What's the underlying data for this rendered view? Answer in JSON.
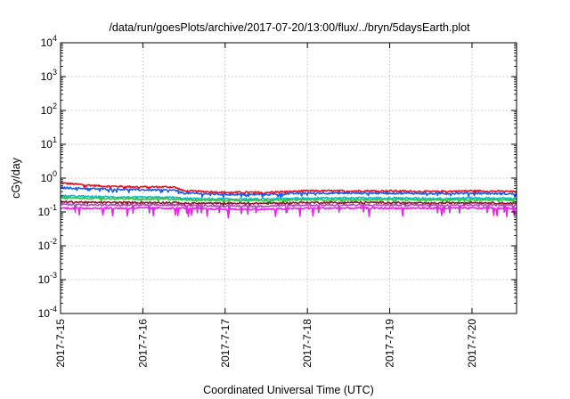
{
  "chart_data": {
    "type": "line",
    "title": "/data/run/goesPlots/archive/2017-07-20/13:00/flux/../bryn/5daysEarth.plot",
    "xlabel": "Coordinated Universal Time (UTC)",
    "ylabel": "cGy/day",
    "y_scale": "log",
    "ylim": [
      0.0001,
      10000
    ],
    "y_ticks": [
      {
        "value": 0.0001,
        "base": "10",
        "exp": "-4"
      },
      {
        "value": 0.001,
        "base": "10",
        "exp": "-3"
      },
      {
        "value": 0.01,
        "base": "10",
        "exp": "-2"
      },
      {
        "value": 0.1,
        "base": "10",
        "exp": "-1"
      },
      {
        "value": 1,
        "base": "10",
        "exp": "0"
      },
      {
        "value": 10,
        "base": "10",
        "exp": "1"
      },
      {
        "value": 100,
        "base": "10",
        "exp": "2"
      },
      {
        "value": 1000,
        "base": "10",
        "exp": "3"
      },
      {
        "value": 10000,
        "base": "10",
        "exp": "4"
      }
    ],
    "x_ticks": [
      "2017-7-15",
      "2017-7-16",
      "2017-7-17",
      "2017-7-18",
      "2017-7-19",
      "2017-7-20"
    ],
    "xlim": [
      "2017-07-15 00:00",
      "2017-07-20 13:00"
    ],
    "grid": true,
    "legend": "none",
    "series": [
      {
        "color": "#e8101c",
        "x": [
          "2017-07-15 00:00",
          "2017-07-15 12:00",
          "2017-07-16 00:00",
          "2017-07-16 09:00",
          "2017-07-16 12:00",
          "2017-07-17 00:00",
          "2017-07-17 12:00",
          "2017-07-18 00:00",
          "2017-07-18 12:00",
          "2017-07-19 00:00",
          "2017-07-19 12:00",
          "2017-07-20 00:00",
          "2017-07-20 13:00"
        ],
        "values": [
          0.72,
          0.58,
          0.55,
          0.55,
          0.42,
          0.38,
          0.38,
          0.42,
          0.42,
          0.42,
          0.4,
          0.42,
          0.4
        ]
      },
      {
        "color": "#1a5cf0",
        "x": [
          "2017-07-15 00:00",
          "2017-07-15 12:00",
          "2017-07-16 00:00",
          "2017-07-16 09:00",
          "2017-07-16 12:00",
          "2017-07-17 00:00",
          "2017-07-17 12:00",
          "2017-07-18 00:00",
          "2017-07-18 12:00",
          "2017-07-19 00:00",
          "2017-07-19 12:00",
          "2017-07-20 00:00",
          "2017-07-20 13:00"
        ],
        "values": [
          0.52,
          0.48,
          0.45,
          0.44,
          0.36,
          0.33,
          0.33,
          0.36,
          0.36,
          0.36,
          0.35,
          0.36,
          0.34
        ]
      },
      {
        "color": "#10b8c8",
        "x": [
          "2017-07-15 00:00",
          "2017-07-15 12:00",
          "2017-07-16 00:00",
          "2017-07-16 09:00",
          "2017-07-16 12:00",
          "2017-07-17 00:00",
          "2017-07-17 12:00",
          "2017-07-18 00:00",
          "2017-07-18 12:00",
          "2017-07-19 00:00",
          "2017-07-19 12:00",
          "2017-07-20 00:00",
          "2017-07-20 13:00"
        ],
        "values": [
          0.3,
          0.28,
          0.27,
          0.27,
          0.25,
          0.24,
          0.24,
          0.26,
          0.26,
          0.26,
          0.25,
          0.26,
          0.25
        ]
      },
      {
        "color": "#2ec83c",
        "x": [
          "2017-07-15 00:00",
          "2017-07-15 12:00",
          "2017-07-16 00:00",
          "2017-07-16 09:00",
          "2017-07-16 12:00",
          "2017-07-17 00:00",
          "2017-07-17 12:00",
          "2017-07-18 00:00",
          "2017-07-18 12:00",
          "2017-07-19 00:00",
          "2017-07-19 12:00",
          "2017-07-20 00:00",
          "2017-07-20 13:00"
        ],
        "values": [
          0.26,
          0.25,
          0.24,
          0.24,
          0.23,
          0.22,
          0.22,
          0.23,
          0.23,
          0.23,
          0.23,
          0.23,
          0.23
        ]
      },
      {
        "color": "#8a1a2a",
        "x": [
          "2017-07-15 00:00",
          "2017-07-15 12:00",
          "2017-07-16 00:00",
          "2017-07-16 09:00",
          "2017-07-16 12:00",
          "2017-07-17 00:00",
          "2017-07-17 12:00",
          "2017-07-18 00:00",
          "2017-07-18 12:00",
          "2017-07-19 00:00",
          "2017-07-19 12:00",
          "2017-07-20 00:00",
          "2017-07-20 13:00"
        ],
        "values": [
          0.2,
          0.19,
          0.19,
          0.19,
          0.18,
          0.18,
          0.18,
          0.19,
          0.19,
          0.19,
          0.18,
          0.19,
          0.18
        ]
      },
      {
        "color": "#b04ac0",
        "x": [
          "2017-07-15 00:00",
          "2017-07-15 12:00",
          "2017-07-16 00:00",
          "2017-07-16 09:00",
          "2017-07-16 12:00",
          "2017-07-17 00:00",
          "2017-07-17 12:00",
          "2017-07-18 00:00",
          "2017-07-18 12:00",
          "2017-07-19 00:00",
          "2017-07-19 12:00",
          "2017-07-20 00:00",
          "2017-07-20 13:00"
        ],
        "values": [
          0.17,
          0.16,
          0.16,
          0.16,
          0.16,
          0.15,
          0.15,
          0.16,
          0.16,
          0.16,
          0.16,
          0.16,
          0.16
        ]
      },
      {
        "color": "#f01cf0",
        "x": [
          "2017-07-15 00:00",
          "2017-07-15 12:00",
          "2017-07-16 00:00",
          "2017-07-16 09:00",
          "2017-07-16 12:00",
          "2017-07-17 00:00",
          "2017-07-17 12:00",
          "2017-07-18 00:00",
          "2017-07-18 12:00",
          "2017-07-19 00:00",
          "2017-07-19 12:00",
          "2017-07-20 00:00",
          "2017-07-20 13:00"
        ],
        "values": [
          0.13,
          0.13,
          0.13,
          0.13,
          0.13,
          0.12,
          0.12,
          0.13,
          0.13,
          0.13,
          0.13,
          0.13,
          0.13
        ]
      }
    ]
  }
}
